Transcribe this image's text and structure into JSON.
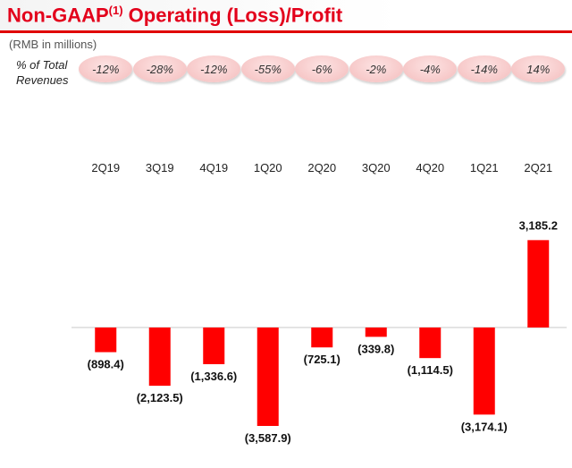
{
  "header": {
    "title": "Non-GAAP",
    "title_sup": "(1)",
    "title_rest": " Operating (Loss)/Profit",
    "subtitle": "(RMB in millions)",
    "pct_label_line1": "% of Total",
    "pct_label_line2": "Revenues"
  },
  "pct_of_revenues": [
    "-12%",
    "-28%",
    "-12%",
    "-55%",
    "-6%",
    "-2%",
    "-4%",
    "-14%",
    "14%"
  ],
  "colors": {
    "bar": "#ff0000",
    "title": "#e3001b",
    "pill": "#f6c6c6"
  },
  "chart_data": {
    "type": "bar",
    "categories": [
      "2Q19",
      "3Q19",
      "4Q19",
      "1Q20",
      "2Q20",
      "3Q20",
      "4Q20",
      "1Q21",
      "2Q21"
    ],
    "values": [
      -898.4,
      -2123.5,
      -1336.6,
      -3587.9,
      -725.1,
      -339.8,
      -1114.5,
      -3174.1,
      3185.2
    ],
    "value_labels": [
      "(898.4)",
      "(2,123.5)",
      "(1,336.6)",
      "(3,587.9)",
      "(725.1)",
      "(339.8)",
      "(1,114.5)",
      "(3,174.1)",
      "3,185.2"
    ],
    "title": "",
    "xlabel": "",
    "ylabel": "",
    "ylim": [
      -3800,
      3400
    ],
    "grid": false,
    "legend": "none"
  }
}
